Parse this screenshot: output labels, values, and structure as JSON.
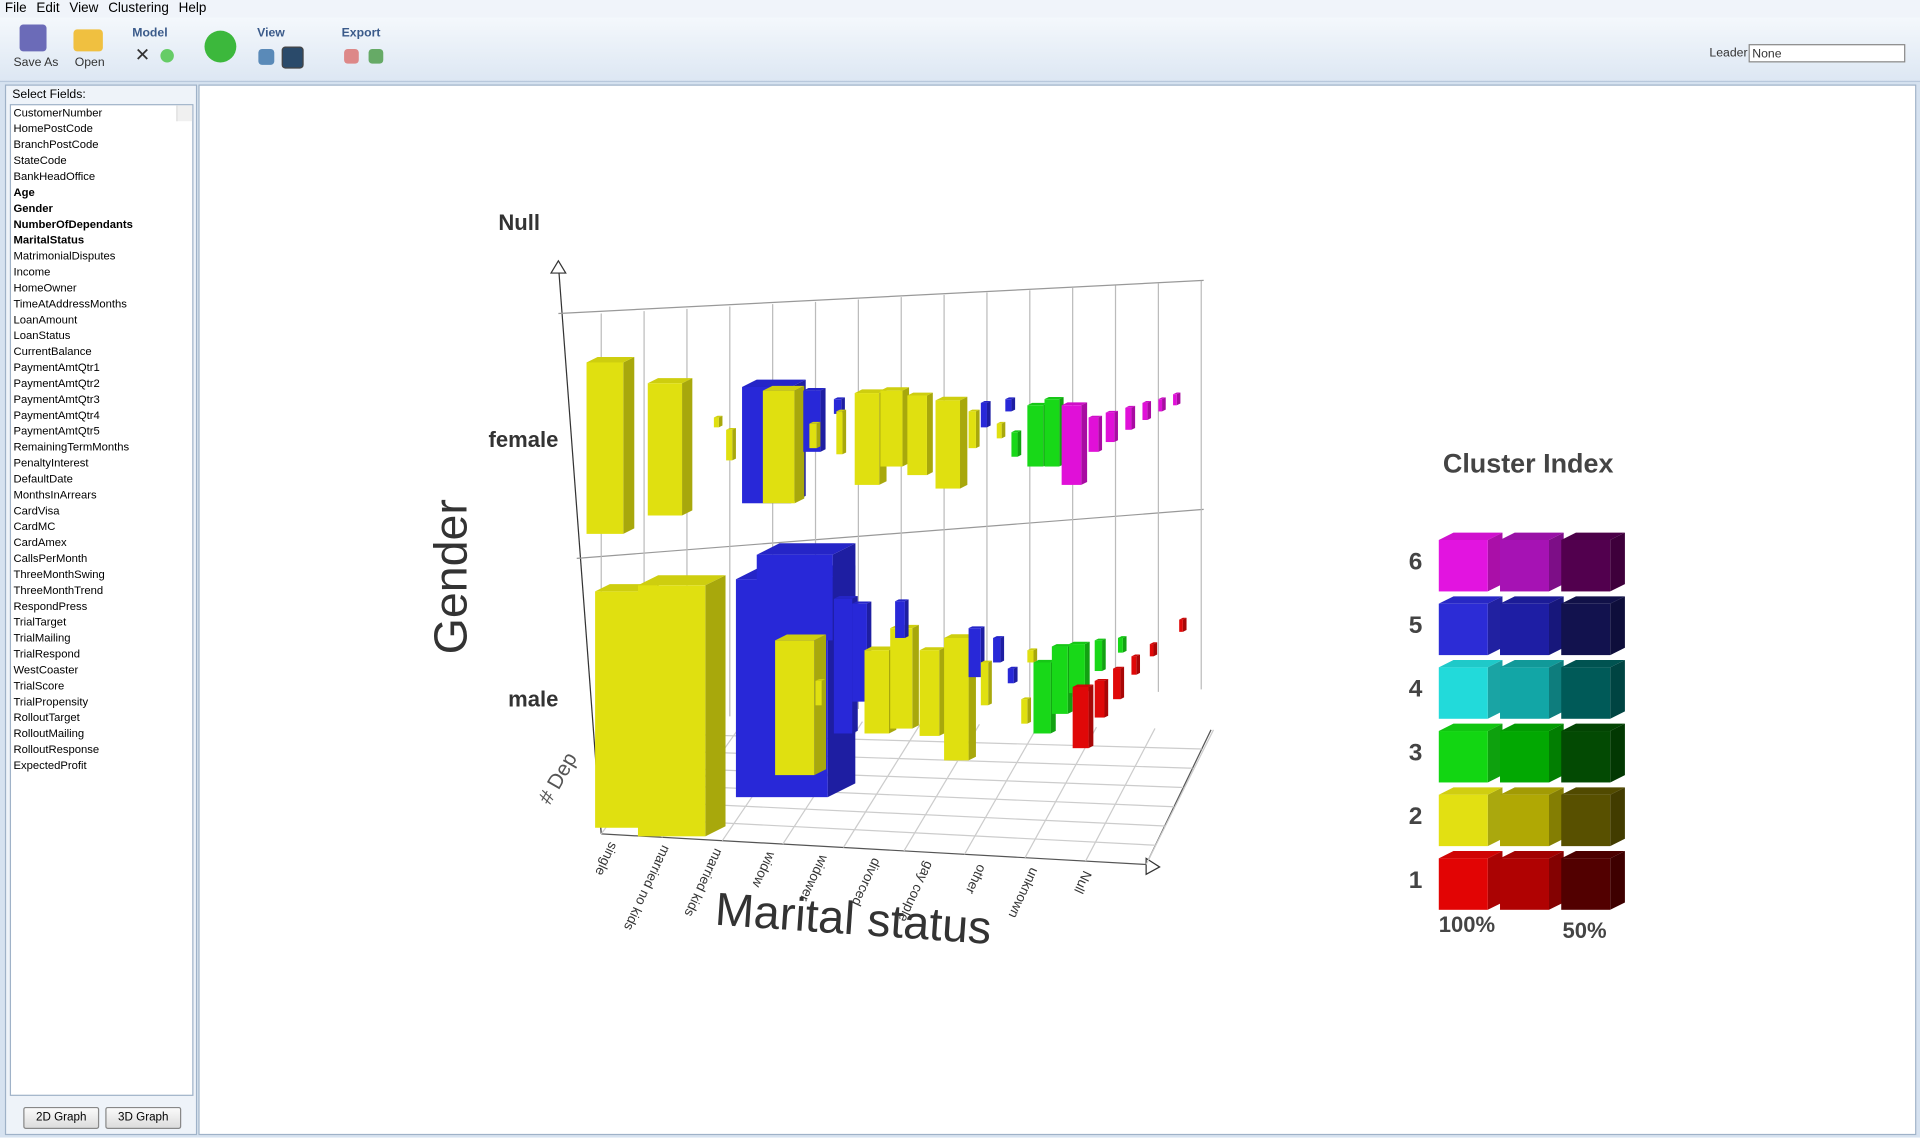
{
  "menu": [
    "File",
    "Edit",
    "View",
    "Clustering",
    "Help"
  ],
  "toolbar": {
    "save_as": "Save As",
    "open": "Open",
    "model": "Model",
    "view": "View",
    "export": "Export",
    "leader_label": "Leader",
    "leader_value": "None"
  },
  "sidebar": {
    "title": "Select Fields:",
    "fields": [
      {
        "name": "CustomerNumber",
        "selected": false
      },
      {
        "name": "HomePostCode",
        "selected": false
      },
      {
        "name": "BranchPostCode",
        "selected": false
      },
      {
        "name": "StateCode",
        "selected": false
      },
      {
        "name": "BankHeadOffice",
        "selected": false
      },
      {
        "name": "Age",
        "selected": true
      },
      {
        "name": "Gender",
        "selected": true
      },
      {
        "name": "NumberOfDependants",
        "selected": true
      },
      {
        "name": "MaritalStatus",
        "selected": true
      },
      {
        "name": "MatrimonialDisputes",
        "selected": false
      },
      {
        "name": "Income",
        "selected": false
      },
      {
        "name": "HomeOwner",
        "selected": false
      },
      {
        "name": "TimeAtAddressMonths",
        "selected": false
      },
      {
        "name": "LoanAmount",
        "selected": false
      },
      {
        "name": "LoanStatus",
        "selected": false
      },
      {
        "name": "CurrentBalance",
        "selected": false
      },
      {
        "name": "PaymentAmtQtr1",
        "selected": false
      },
      {
        "name": "PaymentAmtQtr2",
        "selected": false
      },
      {
        "name": "PaymentAmtQtr3",
        "selected": false
      },
      {
        "name": "PaymentAmtQtr4",
        "selected": false
      },
      {
        "name": "PaymentAmtQtr5",
        "selected": false
      },
      {
        "name": "RemainingTermMonths",
        "selected": false
      },
      {
        "name": "PenaltyInterest",
        "selected": false
      },
      {
        "name": "DefaultDate",
        "selected": false
      },
      {
        "name": "MonthsInArrears",
        "selected": false
      },
      {
        "name": "CardVisa",
        "selected": false
      },
      {
        "name": "CardMC",
        "selected": false
      },
      {
        "name": "CardAmex",
        "selected": false
      },
      {
        "name": "CallsPerMonth",
        "selected": false
      },
      {
        "name": "ThreeMonthSwing",
        "selected": false
      },
      {
        "name": "ThreeMonthTrend",
        "selected": false
      },
      {
        "name": "RespondPress",
        "selected": false
      },
      {
        "name": "TrialTarget",
        "selected": false
      },
      {
        "name": "TrialMailing",
        "selected": false
      },
      {
        "name": "TrialRespond",
        "selected": false
      },
      {
        "name": "WestCoaster",
        "selected": false
      },
      {
        "name": "TrialScore",
        "selected": false
      },
      {
        "name": "TrialPropensity",
        "selected": false
      },
      {
        "name": "RolloutTarget",
        "selected": false
      },
      {
        "name": "RolloutMailing",
        "selected": false
      },
      {
        "name": "RolloutResponse",
        "selected": false
      },
      {
        "name": "ExpectedProfit",
        "selected": false
      }
    ],
    "buttons": [
      "2D Graph",
      "3D Graph"
    ]
  },
  "chart": {
    "z_labels": [
      "Null",
      "female",
      "male"
    ],
    "y_axis_title": "Gender",
    "depth_label": "# Dep",
    "x_axis_title": "Marital status",
    "x_labels": [
      "single",
      "married no kids",
      "married kids",
      "widow",
      "widower",
      "divorced",
      "gay couple",
      "other",
      "unknown",
      "Null"
    ]
  },
  "legend": {
    "title": "Cluster Index",
    "left_label": "100%",
    "right_label": "50%",
    "rows": [
      {
        "label": "6",
        "colors": [
          "#e214e0",
          "#a612b4",
          "#52004e"
        ]
      },
      {
        "label": "5",
        "colors": [
          "#2c2cd6",
          "#1e1ea4",
          "#12124e"
        ]
      },
      {
        "label": "4",
        "colors": [
          "#22dada",
          "#12a6a6",
          "#005a58"
        ]
      },
      {
        "label": "3",
        "colors": [
          "#12d612",
          "#02a802",
          "#034a03"
        ]
      },
      {
        "label": "2",
        "colors": [
          "#e2e012",
          "#b0a804",
          "#585000"
        ]
      },
      {
        "label": "1",
        "colors": [
          "#e20404",
          "#b00202",
          "#520000"
        ]
      }
    ]
  }
}
